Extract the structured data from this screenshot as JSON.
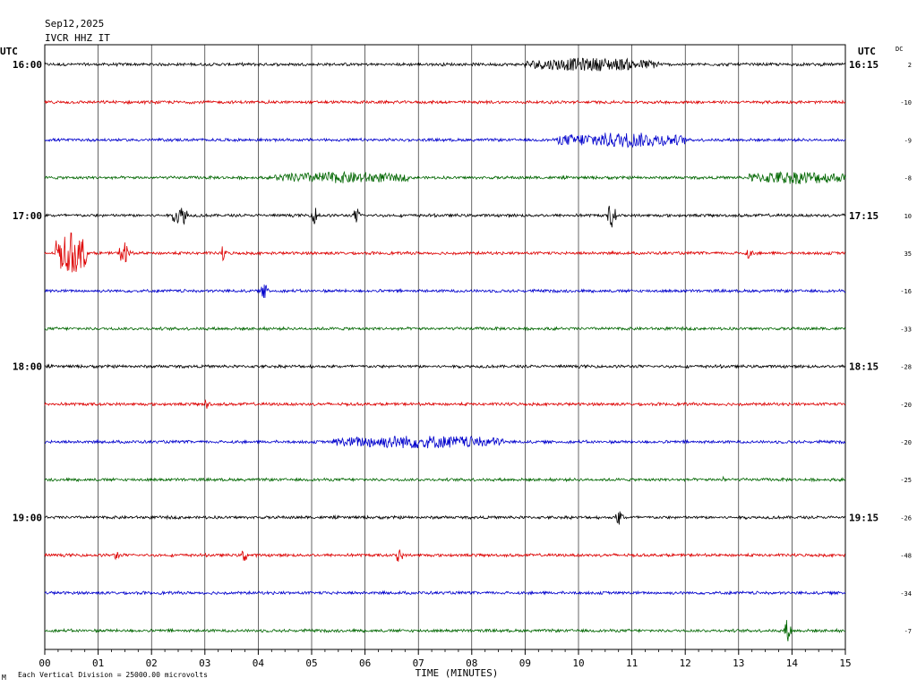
{
  "header": {
    "date": "Sep12,2025",
    "station": "IVCR HHZ IT",
    "utc_left": "UTC",
    "utc_right": "UTC",
    "dc_label": "DC"
  },
  "footer": {
    "scale_note": "Each Vertical Division = 25000.00 microvolts",
    "mark": "M"
  },
  "colors": {
    "trace_cycle": [
      "#000000",
      "#dd0000",
      "#0000cc",
      "#006600"
    ],
    "grid": "#000000",
    "background": "#ffffff"
  },
  "chart_data": {
    "type": "line",
    "title": "Sep12,2025 IVCR HHZ IT",
    "xlabel": "TIME (MINUTES)",
    "xlim": [
      0,
      15
    ],
    "xticks": [
      "00",
      "01",
      "02",
      "03",
      "04",
      "05",
      "06",
      "07",
      "08",
      "09",
      "10",
      "11",
      "12",
      "13",
      "14",
      "15"
    ],
    "rows": [
      {
        "left_label": "16:00",
        "right_label": "16:15",
        "dc": "2"
      },
      {
        "left_label": "",
        "right_label": "",
        "dc": "-10"
      },
      {
        "left_label": "",
        "right_label": "",
        "dc": "-9"
      },
      {
        "left_label": "",
        "right_label": "",
        "dc": "-8"
      },
      {
        "left_label": "17:00",
        "right_label": "17:15",
        "dc": "10"
      },
      {
        "left_label": "",
        "right_label": "",
        "dc": "35"
      },
      {
        "left_label": "",
        "right_label": "",
        "dc": "-16"
      },
      {
        "left_label": "",
        "right_label": "",
        "dc": "-33"
      },
      {
        "left_label": "18:00",
        "right_label": "18:15",
        "dc": "-28"
      },
      {
        "left_label": "",
        "right_label": "",
        "dc": "-20"
      },
      {
        "left_label": "",
        "right_label": "",
        "dc": "-20"
      },
      {
        "left_label": "",
        "right_label": "",
        "dc": "-25"
      },
      {
        "left_label": "19:00",
        "right_label": "19:15",
        "dc": "-26"
      },
      {
        "left_label": "",
        "right_label": "",
        "dc": "-48"
      },
      {
        "left_label": "",
        "right_label": "",
        "dc": "-34"
      },
      {
        "left_label": "",
        "right_label": "",
        "dc": "-7"
      }
    ],
    "events": [
      {
        "row": 0,
        "start": 9.0,
        "end": 11.5,
        "amp": 0.35
      },
      {
        "row": 2,
        "start": 9.6,
        "end": 12.0,
        "amp": 0.4
      },
      {
        "row": 3,
        "start": 4.3,
        "end": 6.8,
        "amp": 0.3
      },
      {
        "row": 3,
        "start": 13.2,
        "end": 15.0,
        "amp": 0.35
      },
      {
        "row": 4,
        "start": 2.4,
        "end": 2.7,
        "amp": 0.5
      },
      {
        "row": 4,
        "start": 5.0,
        "end": 5.15,
        "amp": 0.55
      },
      {
        "row": 4,
        "start": 5.8,
        "end": 5.9,
        "amp": 0.6
      },
      {
        "row": 4,
        "start": 10.55,
        "end": 10.7,
        "amp": 1.0
      },
      {
        "row": 5,
        "start": 0.2,
        "end": 0.8,
        "amp": 1.1
      },
      {
        "row": 5,
        "start": 1.4,
        "end": 1.6,
        "amp": 0.8
      },
      {
        "row": 5,
        "start": 3.3,
        "end": 3.4,
        "amp": 0.5
      },
      {
        "row": 5,
        "start": 13.1,
        "end": 13.3,
        "amp": 0.3
      },
      {
        "row": 6,
        "start": 4.05,
        "end": 4.2,
        "amp": 0.5
      },
      {
        "row": 9,
        "start": 3.0,
        "end": 3.1,
        "amp": 0.4
      },
      {
        "row": 10,
        "start": 5.4,
        "end": 8.6,
        "amp": 0.35
      },
      {
        "row": 11,
        "start": 12.7,
        "end": 12.75,
        "amp": 0.4
      },
      {
        "row": 12,
        "start": 10.7,
        "end": 10.85,
        "amp": 0.5
      },
      {
        "row": 13,
        "start": 1.3,
        "end": 1.4,
        "amp": 0.4
      },
      {
        "row": 13,
        "start": 3.7,
        "end": 3.8,
        "amp": 0.55
      },
      {
        "row": 13,
        "start": 6.6,
        "end": 6.7,
        "amp": 0.7
      },
      {
        "row": 15,
        "start": 13.85,
        "end": 14.0,
        "amp": 0.7
      }
    ]
  }
}
